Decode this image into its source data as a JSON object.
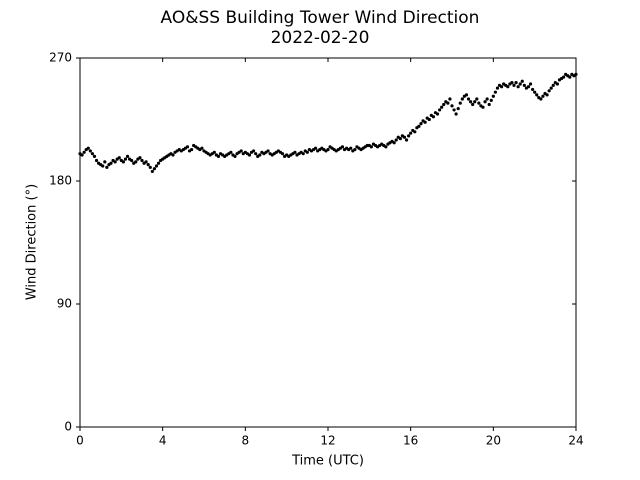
{
  "chart_data": {
    "type": "scatter",
    "title": "AO&SS Building Tower Wind Direction",
    "subtitle": "2022-02-20",
    "x_label": "Time (UTC)",
    "y_label": "Wind Direction (°)",
    "color": "#000000",
    "xlim": [
      0,
      24
    ],
    "xticks": [
      0,
      4,
      8,
      12,
      16,
      20,
      24
    ],
    "ylim": [
      0,
      270
    ],
    "yticks": [
      0,
      90,
      180,
      270
    ],
    "x": [
      0,
      0.1,
      0.2,
      0.3,
      0.4,
      0.5,
      0.6,
      0.7,
      0.8,
      0.9,
      1,
      1.1,
      1.2,
      1.3,
      1.4,
      1.5,
      1.6,
      1.7,
      1.8,
      1.9,
      2,
      2.1,
      2.2,
      2.3,
      2.4,
      2.5,
      2.6,
      2.7,
      2.8,
      2.9,
      3,
      3.1,
      3.2,
      3.3,
      3.4,
      3.5,
      3.6,
      3.7,
      3.8,
      3.9,
      4,
      4.1,
      4.2,
      4.3,
      4.4,
      4.5,
      4.6,
      4.7,
      4.8,
      4.9,
      5,
      5.1,
      5.2,
      5.3,
      5.4,
      5.5,
      5.6,
      5.7,
      5.8,
      5.9,
      6,
      6.1,
      6.2,
      6.3,
      6.4,
      6.5,
      6.6,
      6.7,
      6.8,
      6.9,
      7,
      7.1,
      7.2,
      7.3,
      7.4,
      7.5,
      7.6,
      7.7,
      7.8,
      7.9,
      8,
      8.1,
      8.2,
      8.3,
      8.4,
      8.5,
      8.6,
      8.7,
      8.8,
      8.9,
      9,
      9.1,
      9.2,
      9.3,
      9.4,
      9.5,
      9.6,
      9.7,
      9.8,
      9.9,
      10,
      10.1,
      10.2,
      10.3,
      10.4,
      10.5,
      10.6,
      10.7,
      10.8,
      10.9,
      11,
      11.1,
      11.2,
      11.3,
      11.4,
      11.5,
      11.6,
      11.7,
      11.8,
      11.9,
      12,
      12.1,
      12.2,
      12.3,
      12.4,
      12.5,
      12.6,
      12.7,
      12.8,
      12.9,
      13,
      13.1,
      13.2,
      13.3,
      13.4,
      13.5,
      13.6,
      13.7,
      13.8,
      13.9,
      14,
      14.1,
      14.2,
      14.3,
      14.4,
      14.5,
      14.6,
      14.7,
      14.8,
      14.9,
      15,
      15.1,
      15.2,
      15.3,
      15.4,
      15.5,
      15.6,
      15.7,
      15.8,
      15.9,
      16,
      16.1,
      16.2,
      16.3,
      16.4,
      16.5,
      16.6,
      16.7,
      16.8,
      16.9,
      17,
      17.1,
      17.2,
      17.3,
      17.4,
      17.5,
      17.6,
      17.7,
      17.8,
      17.9,
      18,
      18.1,
      18.2,
      18.3,
      18.4,
      18.5,
      18.6,
      18.7,
      18.8,
      18.9,
      19,
      19.1,
      19.2,
      19.3,
      19.4,
      19.5,
      19.6,
      19.7,
      19.8,
      19.9,
      20,
      20.1,
      20.2,
      20.3,
      20.4,
      20.5,
      20.6,
      20.7,
      20.8,
      20.9,
      21,
      21.1,
      21.2,
      21.3,
      21.4,
      21.5,
      21.6,
      21.7,
      21.8,
      21.9,
      22,
      22.1,
      22.2,
      22.3,
      22.4,
      22.5,
      22.6,
      22.7,
      22.8,
      22.9,
      23,
      23.1,
      23.2,
      23.3,
      23.4,
      23.5,
      23.6,
      23.7,
      23.8,
      23.9,
      24
    ],
    "values": [
      200,
      199,
      201,
      203,
      204,
      202,
      200,
      198,
      195,
      193,
      192,
      191,
      194,
      190,
      192,
      193,
      195,
      194,
      196,
      197,
      195,
      194,
      196,
      198,
      196,
      195,
      193,
      194,
      196,
      197,
      195,
      193,
      194,
      192,
      190,
      187,
      189,
      191,
      193,
      195,
      196,
      197,
      198,
      199,
      200,
      199,
      201,
      202,
      203,
      202,
      203,
      204,
      205,
      202,
      203,
      206,
      205,
      204,
      203,
      204,
      202,
      201,
      200,
      199,
      200,
      201,
      199,
      198,
      200,
      199,
      198,
      199,
      200,
      201,
      199,
      198,
      200,
      201,
      202,
      200,
      201,
      200,
      199,
      201,
      202,
      200,
      198,
      199,
      201,
      200,
      201,
      202,
      200,
      199,
      200,
      201,
      202,
      201,
      200,
      198,
      199,
      198,
      199,
      200,
      201,
      199,
      200,
      201,
      200,
      202,
      201,
      203,
      202,
      203,
      204,
      202,
      203,
      204,
      203,
      202,
      203,
      205,
      204,
      203,
      202,
      203,
      204,
      205,
      203,
      204,
      203,
      204,
      202,
      203,
      205,
      204,
      203,
      204,
      205,
      206,
      206,
      205,
      207,
      206,
      205,
      206,
      207,
      206,
      205,
      207,
      208,
      209,
      208,
      210,
      212,
      211,
      213,
      212,
      210,
      213,
      215,
      217,
      216,
      219,
      220,
      222,
      224,
      223,
      226,
      225,
      228,
      227,
      230,
      229,
      232,
      234,
      236,
      238,
      237,
      240,
      235,
      232,
      229,
      233,
      237,
      240,
      242,
      243,
      240,
      238,
      236,
      238,
      240,
      237,
      235,
      234,
      238,
      240,
      236,
      239,
      242,
      245,
      248,
      250,
      249,
      251,
      250,
      249,
      251,
      252,
      250,
      252,
      249,
      251,
      253,
      250,
      248,
      249,
      251,
      247,
      245,
      243,
      241,
      240,
      242,
      244,
      243,
      246,
      248,
      250,
      252,
      251,
      254,
      255,
      256,
      258,
      257,
      256,
      258,
      257,
      258
    ]
  }
}
